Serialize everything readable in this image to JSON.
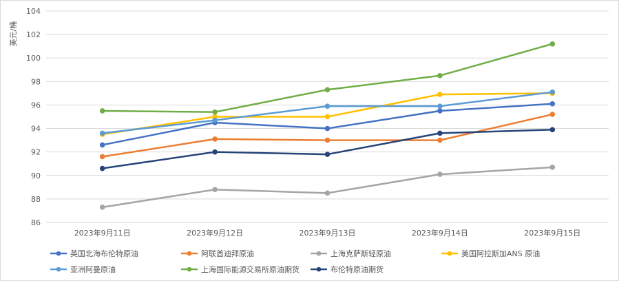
{
  "chart_data": {
    "type": "line",
    "title": "",
    "xlabel": "",
    "ylabel": "美元/桶",
    "categories": [
      "2023年9月11日",
      "2023年9月12日",
      "2023年9月13日",
      "2023年9月14日",
      "2023年9月15日"
    ],
    "ylim": [
      86,
      104
    ],
    "yticks": [
      "86",
      "88",
      "90",
      "92",
      "94",
      "96",
      "98",
      "100",
      "102",
      "104"
    ],
    "grid": true,
    "legend_position": "bottom",
    "series": [
      {
        "name": "英国北海布伦特原油",
        "color": "#4472C4",
        "values": [
          92.6,
          94.5,
          94.0,
          95.5,
          96.1
        ]
      },
      {
        "name": "阿联酋迪拜原油",
        "color": "#ED7D31",
        "values": [
          91.6,
          93.1,
          93.0,
          93.0,
          95.2
        ]
      },
      {
        "name": "上海克萨斯轻原油",
        "color": "#A5A5A5",
        "values": [
          87.3,
          88.8,
          88.5,
          90.1,
          90.7
        ]
      },
      {
        "name": "美国阿拉斯加ANS 原油",
        "color": "#FFC000",
        "values": [
          93.5,
          95.0,
          95.0,
          96.9,
          97.0
        ]
      },
      {
        "name": "亚洲阿曼原油",
        "color": "#5B9BD5",
        "values": [
          93.6,
          94.7,
          95.9,
          95.9,
          97.1
        ]
      },
      {
        "name": "上海国际能源交易所原油期货",
        "color": "#70AD47",
        "values": [
          95.5,
          95.4,
          97.3,
          98.5,
          101.2
        ]
      },
      {
        "name": "布伦特原油期货",
        "color": "#264478",
        "values": [
          90.6,
          92.0,
          91.8,
          93.6,
          93.9
        ]
      }
    ]
  }
}
